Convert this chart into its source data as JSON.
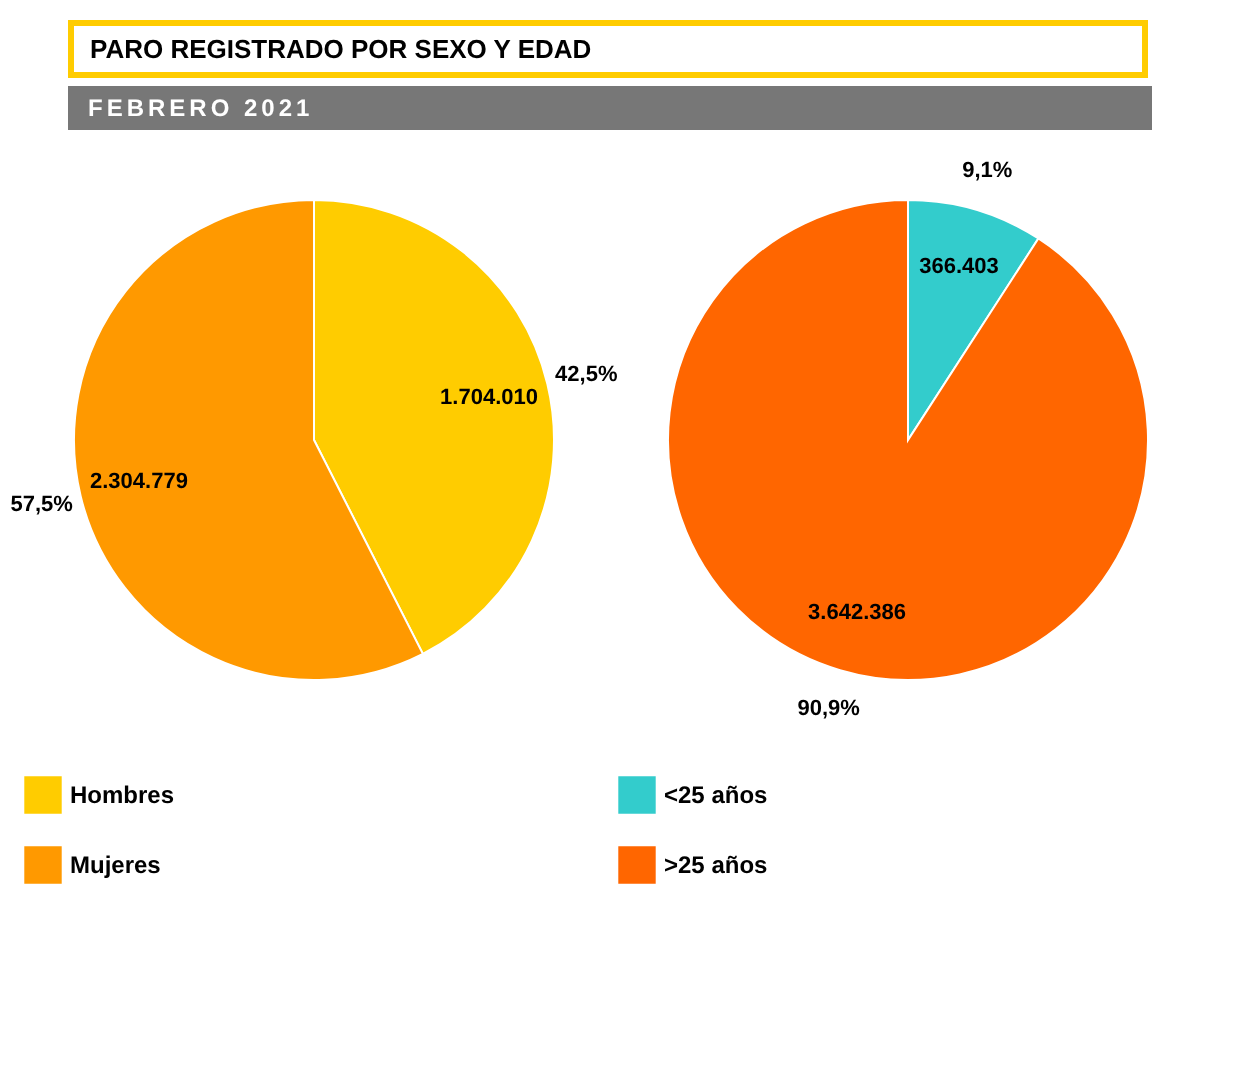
{
  "chart_data": [
    {
      "type": "pie",
      "title": "PARO REGISTRADO POR SEXO Y EDAD",
      "subtitle": "FEBRERO 2021",
      "categories": [
        "Hombres",
        "Mujeres"
      ],
      "values": [
        1704010,
        2304779
      ],
      "value_labels": [
        "1.704.010",
        "2.304.779"
      ],
      "colors": [
        "#ffcc00",
        "#ff9900"
      ],
      "annotations": [
        "42,5%",
        "57,5%"
      ],
      "legend": "bottom"
    },
    {
      "type": "pie",
      "categories": [
        "<25 años",
        ">25 años"
      ],
      "values": [
        366403,
        3642386
      ],
      "value_labels": [
        "366.403",
        "3.642.386"
      ],
      "colors": [
        "#33cccc",
        "#ff6600"
      ],
      "annotations": [
        "9,1%",
        "90,9%"
      ],
      "legend": "bottom"
    }
  ]
}
